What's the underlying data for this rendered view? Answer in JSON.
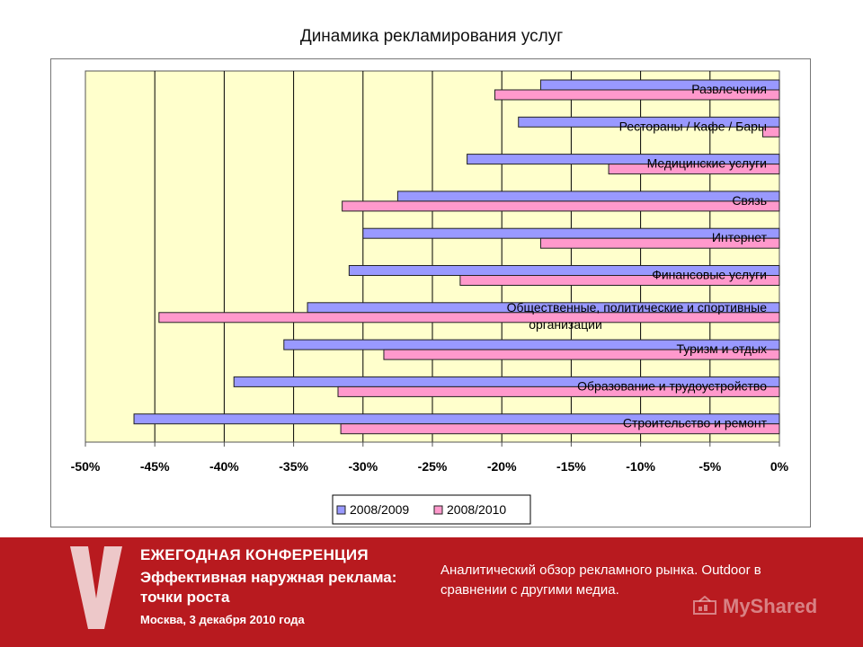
{
  "slide": {
    "title": "Динамика рекламирования услуг"
  },
  "chart_data": {
    "type": "bar",
    "orientation": "horizontal",
    "title": "Динамика рекламирования услуг",
    "categories": [
      "Развлечения",
      "Рестораны / Кафе / Бары",
      "Медицинские услуги",
      "Связь",
      "Интернет",
      "Финансовые услуги",
      "Общественные, политические и спортивные организации",
      "Туризм и отдых",
      "Образование и трудоустройство",
      "Строительство и ремонт"
    ],
    "series": [
      {
        "name": "2008/2009",
        "color": "#9999ff",
        "values": [
          -17.2,
          -18.8,
          -22.5,
          -27.5,
          -30.0,
          -31.0,
          -34.0,
          -35.7,
          -39.3,
          -46.5
        ]
      },
      {
        "name": "2008/2010",
        "color": "#ff99cc",
        "values": [
          -20.5,
          -1.2,
          -12.3,
          -31.5,
          -17.2,
          -23.0,
          -44.7,
          -28.5,
          -31.8,
          -31.6
        ]
      }
    ],
    "xlim": [
      -50,
      0
    ],
    "x_ticks": [
      "-50%",
      "-45%",
      "-40%",
      "-35%",
      "-30%",
      "-25%",
      "-20%",
      "-15%",
      "-10%",
      "-5%",
      "0%"
    ],
    "xlabel": "",
    "ylabel": "",
    "plot_background": "#ffffcc",
    "grid": true,
    "legend_position": "bottom"
  },
  "footer": {
    "logo_letter": "V",
    "conference_name": "ЕЖЕГОДНАЯ КОНФЕРЕНЦИЯ",
    "conference_subtitle": "Эффективная наружная реклама: точки роста",
    "date": "Москва, 3 декабря 2010 года",
    "note": "Аналитический обзор рекламного рынка. Outdoor в сравнении с другими медиа.",
    "watermark": "MyShared",
    "background_color": "#b81a1f"
  }
}
